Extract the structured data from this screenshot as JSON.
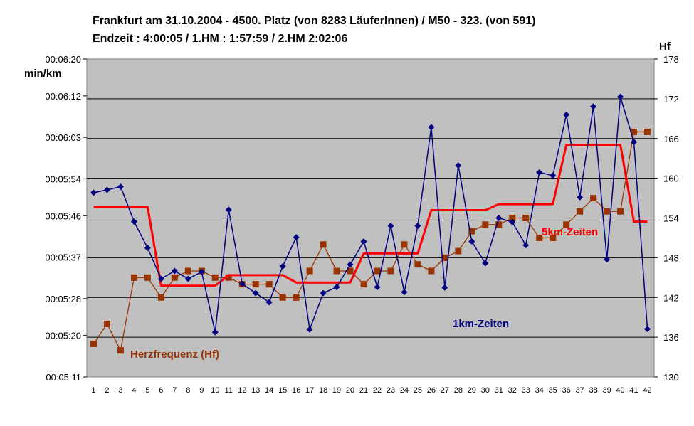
{
  "chart_data": {
    "type": "line",
    "title": [
      "Frankfurt am 31.10.2004 - 4500. Platz (von 8283 LäuferInnen) / M50 - 323. (von 591)",
      "Endzeit : 4:00:05  / 1.HM : 1:57:59  / 2.HM  2:02:06"
    ],
    "y_left": {
      "label": "min/km",
      "range_seconds": [
        311,
        380
      ],
      "ticks_seconds": [
        311,
        320,
        328,
        337,
        346,
        354,
        363,
        372,
        380
      ],
      "tick_labels": [
        "00:05:11",
        "00:05:20",
        "00:05:28",
        "00:05:37",
        "00:05:46",
        "00:05:54",
        "00:06:03",
        "00:06:12",
        "00:06:20"
      ]
    },
    "y_right": {
      "label": "Hf",
      "range": [
        130,
        178
      ],
      "ticks": [
        130,
        136,
        142,
        148,
        154,
        160,
        166,
        172,
        178
      ]
    },
    "x": [
      1,
      2,
      3,
      4,
      5,
      6,
      7,
      8,
      9,
      10,
      11,
      12,
      13,
      14,
      15,
      16,
      17,
      18,
      19,
      20,
      21,
      22,
      23,
      24,
      25,
      26,
      27,
      28,
      29,
      30,
      31,
      32,
      33,
      34,
      35,
      36,
      37,
      38,
      39,
      40,
      41,
      42
    ],
    "grid": true,
    "plot_background": "#c0c0c0",
    "series": [
      {
        "name": "1km-Zeiten",
        "axis": "left",
        "color": "#000080",
        "marker": "diamond",
        "values": [
          351,
          351.6,
          352.3,
          344.7,
          339,
          332.3,
          334,
          332.3,
          333.8,
          320.7,
          347.3,
          331.2,
          329.2,
          327.2,
          335,
          341.3,
          321.3,
          329.2,
          330.5,
          335.4,
          340.4,
          330.5,
          343.8,
          329.4,
          343.8,
          365.2,
          330.4,
          356.9,
          340.4,
          335.7,
          345.5,
          344.6,
          339.6,
          355.4,
          354.7,
          367.9,
          350,
          369.7,
          336.5,
          371.8,
          362,
          321.4
        ]
      },
      {
        "name": "5km-Zeiten",
        "axis": "left",
        "color": "#ff0000",
        "marker": "none",
        "values": [
          347.9,
          347.9,
          347.9,
          347.9,
          347.9,
          330.8,
          330.8,
          330.8,
          330.8,
          330.8,
          333.1,
          333.1,
          333.1,
          333.1,
          333.1,
          331.5,
          331.5,
          331.5,
          331.5,
          331.5,
          337.8,
          337.8,
          337.8,
          337.8,
          337.8,
          347.2,
          347.2,
          347.2,
          347.2,
          347.2,
          348.5,
          348.5,
          348.5,
          348.5,
          348.5,
          361.4,
          361.4,
          361.4,
          361.4,
          361.4,
          344.7,
          344.7
        ]
      },
      {
        "name": "Herzfrequenz (Hf)",
        "axis": "right",
        "color": "#993300",
        "marker": "square",
        "values": [
          135,
          138,
          134,
          145,
          145,
          142,
          145,
          146,
          146,
          145,
          145,
          144,
          144,
          144,
          142,
          142,
          146,
          150,
          146,
          146,
          144,
          146,
          146,
          150,
          147,
          146,
          148,
          149,
          152,
          153,
          153,
          154,
          154,
          151,
          151,
          153,
          155,
          157,
          155,
          155,
          167,
          167
        ]
      }
    ],
    "annotations": [
      {
        "text": "Herzfrequenz (Hf)",
        "color": "#993300"
      },
      {
        "text": "5km-Zeiten",
        "color": "#ff0000"
      },
      {
        "text": "1km-Zeiten",
        "color": "#000080"
      }
    ]
  }
}
